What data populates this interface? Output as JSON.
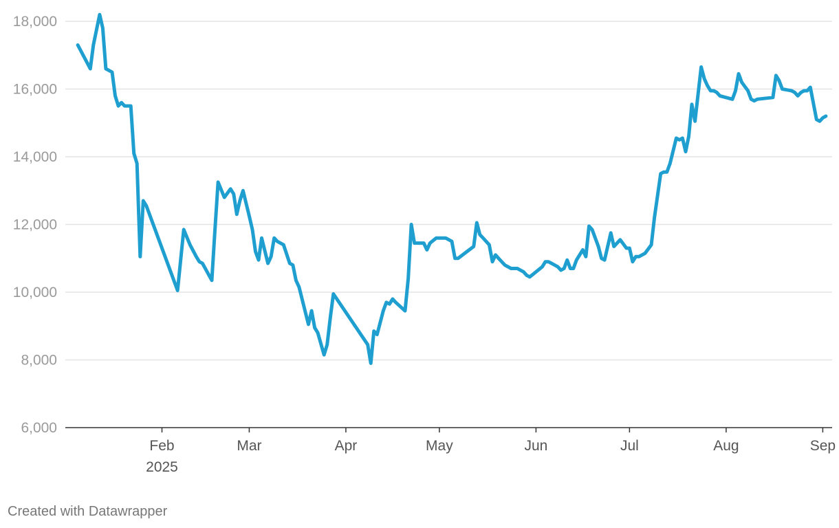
{
  "credit": "Created with Datawrapper",
  "chart_data": {
    "type": "line",
    "title": "",
    "xlabel": "",
    "ylabel": "",
    "ylim": [
      6000,
      18000
    ],
    "yticks": [
      6000,
      8000,
      10000,
      12000,
      14000,
      16000,
      18000
    ],
    "xlim": [
      "2025-01-01",
      "2025-09-04"
    ],
    "xticks": [
      {
        "date": "2025-02-01",
        "label": "Feb",
        "sublabel": "2025"
      },
      {
        "date": "2025-03-01",
        "label": "Mar"
      },
      {
        "date": "2025-04-01",
        "label": "Apr"
      },
      {
        "date": "2025-05-01",
        "label": "May"
      },
      {
        "date": "2025-06-01",
        "label": "Jun"
      },
      {
        "date": "2025-07-01",
        "label": "Jul"
      },
      {
        "date": "2025-08-01",
        "label": "Aug"
      },
      {
        "date": "2025-09-01",
        "label": "Sep"
      }
    ],
    "grid": true,
    "line_color": "#1f9fcf",
    "series": [
      {
        "x": [
          "2025-01-05",
          "2025-01-09",
          "2025-01-10",
          "2025-01-12",
          "2025-01-13",
          "2025-01-14",
          "2025-01-16",
          "2025-01-17",
          "2025-01-18",
          "2025-01-19",
          "2025-01-20",
          "2025-01-22",
          "2025-01-23",
          "2025-01-24",
          "2025-01-25",
          "2025-01-26",
          "2025-01-27",
          "2025-01-29",
          "2025-02-06",
          "2025-02-08",
          "2025-02-10",
          "2025-02-12",
          "2025-02-13",
          "2025-02-14",
          "2025-02-17",
          "2025-02-18",
          "2025-02-19",
          "2025-02-21",
          "2025-02-23",
          "2025-02-24",
          "2025-02-25",
          "2025-02-26",
          "2025-02-27",
          "2025-03-01",
          "2025-03-02",
          "2025-03-03",
          "2025-03-04",
          "2025-03-05",
          "2025-03-07",
          "2025-03-08",
          "2025-03-09",
          "2025-03-10",
          "2025-03-12",
          "2025-03-14",
          "2025-03-15",
          "2025-03-16",
          "2025-03-17",
          "2025-03-20",
          "2025-03-21",
          "2025-03-22",
          "2025-03-23",
          "2025-03-25",
          "2025-03-26",
          "2025-03-27",
          "2025-03-28",
          "2025-04-08",
          "2025-04-09",
          "2025-04-10",
          "2025-04-11",
          "2025-04-13",
          "2025-04-14",
          "2025-04-15",
          "2025-04-16",
          "2025-04-17",
          "2025-04-20",
          "2025-04-21",
          "2025-04-22",
          "2025-04-23",
          "2025-04-26",
          "2025-04-27",
          "2025-04-28",
          "2025-04-30",
          "2025-05-03",
          "2025-05-05",
          "2025-05-06",
          "2025-05-07",
          "2025-05-12",
          "2025-05-13",
          "2025-05-14",
          "2025-05-15",
          "2025-05-17",
          "2025-05-18",
          "2025-05-19",
          "2025-05-20",
          "2025-05-22",
          "2025-05-24",
          "2025-05-26",
          "2025-05-28",
          "2025-05-29",
          "2025-05-30",
          "2025-06-03",
          "2025-06-04",
          "2025-06-05",
          "2025-06-06",
          "2025-06-08",
          "2025-06-09",
          "2025-06-10",
          "2025-06-11",
          "2025-06-12",
          "2025-06-13",
          "2025-06-14",
          "2025-06-16",
          "2025-06-17",
          "2025-06-18",
          "2025-06-19",
          "2025-06-21",
          "2025-06-22",
          "2025-06-23",
          "2025-06-25",
          "2025-06-26",
          "2025-06-27",
          "2025-06-28",
          "2025-06-30",
          "2025-07-01",
          "2025-07-02",
          "2025-07-03",
          "2025-07-04",
          "2025-07-06",
          "2025-07-08",
          "2025-07-09",
          "2025-07-11",
          "2025-07-12",
          "2025-07-13",
          "2025-07-14",
          "2025-07-16",
          "2025-07-17",
          "2025-07-18",
          "2025-07-19",
          "2025-07-20",
          "2025-07-21",
          "2025-07-22",
          "2025-07-24",
          "2025-07-25",
          "2025-07-26",
          "2025-07-27",
          "2025-07-28",
          "2025-07-29",
          "2025-07-30",
          "2025-08-03",
          "2025-08-04",
          "2025-08-05",
          "2025-08-06",
          "2025-08-08",
          "2025-08-09",
          "2025-08-10",
          "2025-08-11",
          "2025-08-16",
          "2025-08-17",
          "2025-08-18",
          "2025-08-19",
          "2025-08-22",
          "2025-08-23",
          "2025-08-24",
          "2025-08-25",
          "2025-08-26",
          "2025-08-27",
          "2025-08-28",
          "2025-08-30",
          "2025-08-31",
          "2025-09-01",
          "2025-09-02"
        ],
        "y": [
          17300,
          16600,
          17300,
          18200,
          17800,
          16600,
          16500,
          15800,
          15500,
          15600,
          15500,
          15500,
          14100,
          13800,
          11050,
          12700,
          12550,
          12050,
          10050,
          11850,
          11400,
          11050,
          10900,
          10850,
          10350,
          11850,
          13250,
          12800,
          13050,
          12900,
          12300,
          12700,
          13000,
          12250,
          11850,
          11200,
          10950,
          11600,
          10850,
          11050,
          11600,
          11500,
          11400,
          10850,
          10800,
          10350,
          10150,
          9050,
          9450,
          8950,
          8800,
          8150,
          8450,
          9250,
          9950,
          8450,
          7900,
          8850,
          8750,
          9450,
          9700,
          9650,
          9800,
          9700,
          9450,
          10400,
          12000,
          11450,
          11450,
          11250,
          11450,
          11600,
          11600,
          11500,
          11000,
          11000,
          11350,
          12050,
          11700,
          11600,
          11400,
          10900,
          11100,
          11000,
          10800,
          10700,
          10700,
          10600,
          10500,
          10450,
          10750,
          10900,
          10900,
          10850,
          10750,
          10650,
          10700,
          10950,
          10700,
          10700,
          10950,
          11250,
          11050,
          11950,
          11850,
          11350,
          11000,
          10950,
          11750,
          11350,
          11450,
          11550,
          11300,
          11300,
          10900,
          11050,
          11050,
          11150,
          11400,
          12200,
          13500,
          13550,
          13550,
          13800,
          14550,
          14500,
          14550,
          14150,
          14600,
          15550,
          15050,
          16650,
          16300,
          16100,
          15950,
          15950,
          15900,
          15800,
          15700,
          15950,
          16450,
          16200,
          15950,
          15700,
          15650,
          15700,
          15750,
          16400,
          16250,
          16000,
          15950,
          15900,
          15800,
          15900,
          15950,
          15950,
          16050,
          15100,
          15050,
          15150,
          15200
        ]
      }
    ]
  }
}
